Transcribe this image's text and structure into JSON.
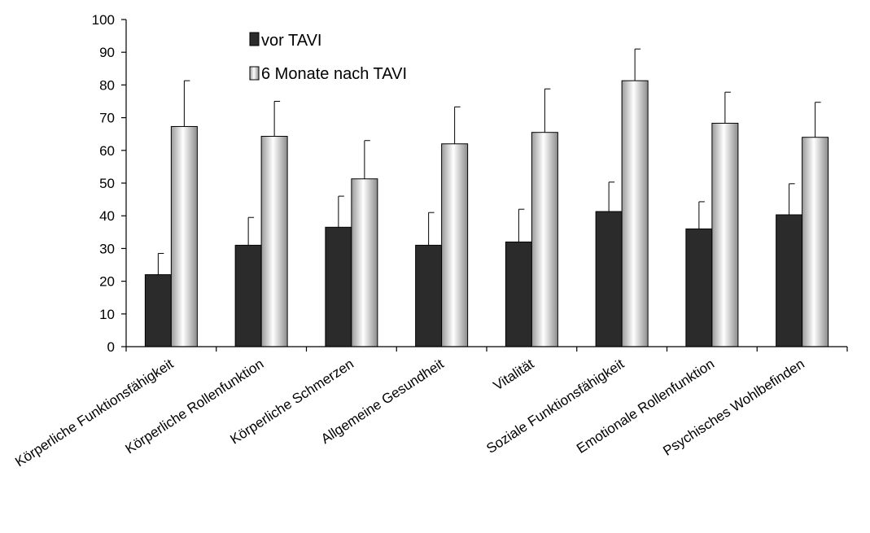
{
  "chart_data": {
    "type": "bar",
    "categories": [
      "Körperliche Funktionsfähigkeit",
      "Körperliche Rollenfunktion",
      "Körperliche Schmerzen",
      "Allgemeine Gesundheit",
      "Vitalität",
      "Soziale Funktionsfähigkeit",
      "Emotionale Rollenfunktion",
      "Psychisches Wohlbefinden"
    ],
    "series": [
      {
        "name": "vor TAVI",
        "values": [
          22,
          31,
          36.5,
          31,
          32,
          41.3,
          36,
          40.3
        ],
        "error": [
          6.5,
          8.5,
          9.5,
          10,
          10,
          9,
          8.3,
          9.5
        ],
        "color": "#2b2b2b"
      },
      {
        "name": "6 Monate nach TAVI",
        "values": [
          67.3,
          64.3,
          51.3,
          62,
          65.5,
          81.3,
          68.3,
          64
        ],
        "error": [
          14,
          10.7,
          11.7,
          11.3,
          13.3,
          9.7,
          9.5,
          10.7
        ],
        "color": "#e8e8e8"
      }
    ],
    "y_ticks": [
      "0",
      "10",
      "20",
      "30",
      "40",
      "50",
      "60",
      "70",
      "80",
      "90",
      "100"
    ],
    "ylim": [
      0,
      100
    ],
    "title": "",
    "xlabel": "",
    "ylabel": "",
    "grid": false,
    "legend_position": "top-left"
  }
}
